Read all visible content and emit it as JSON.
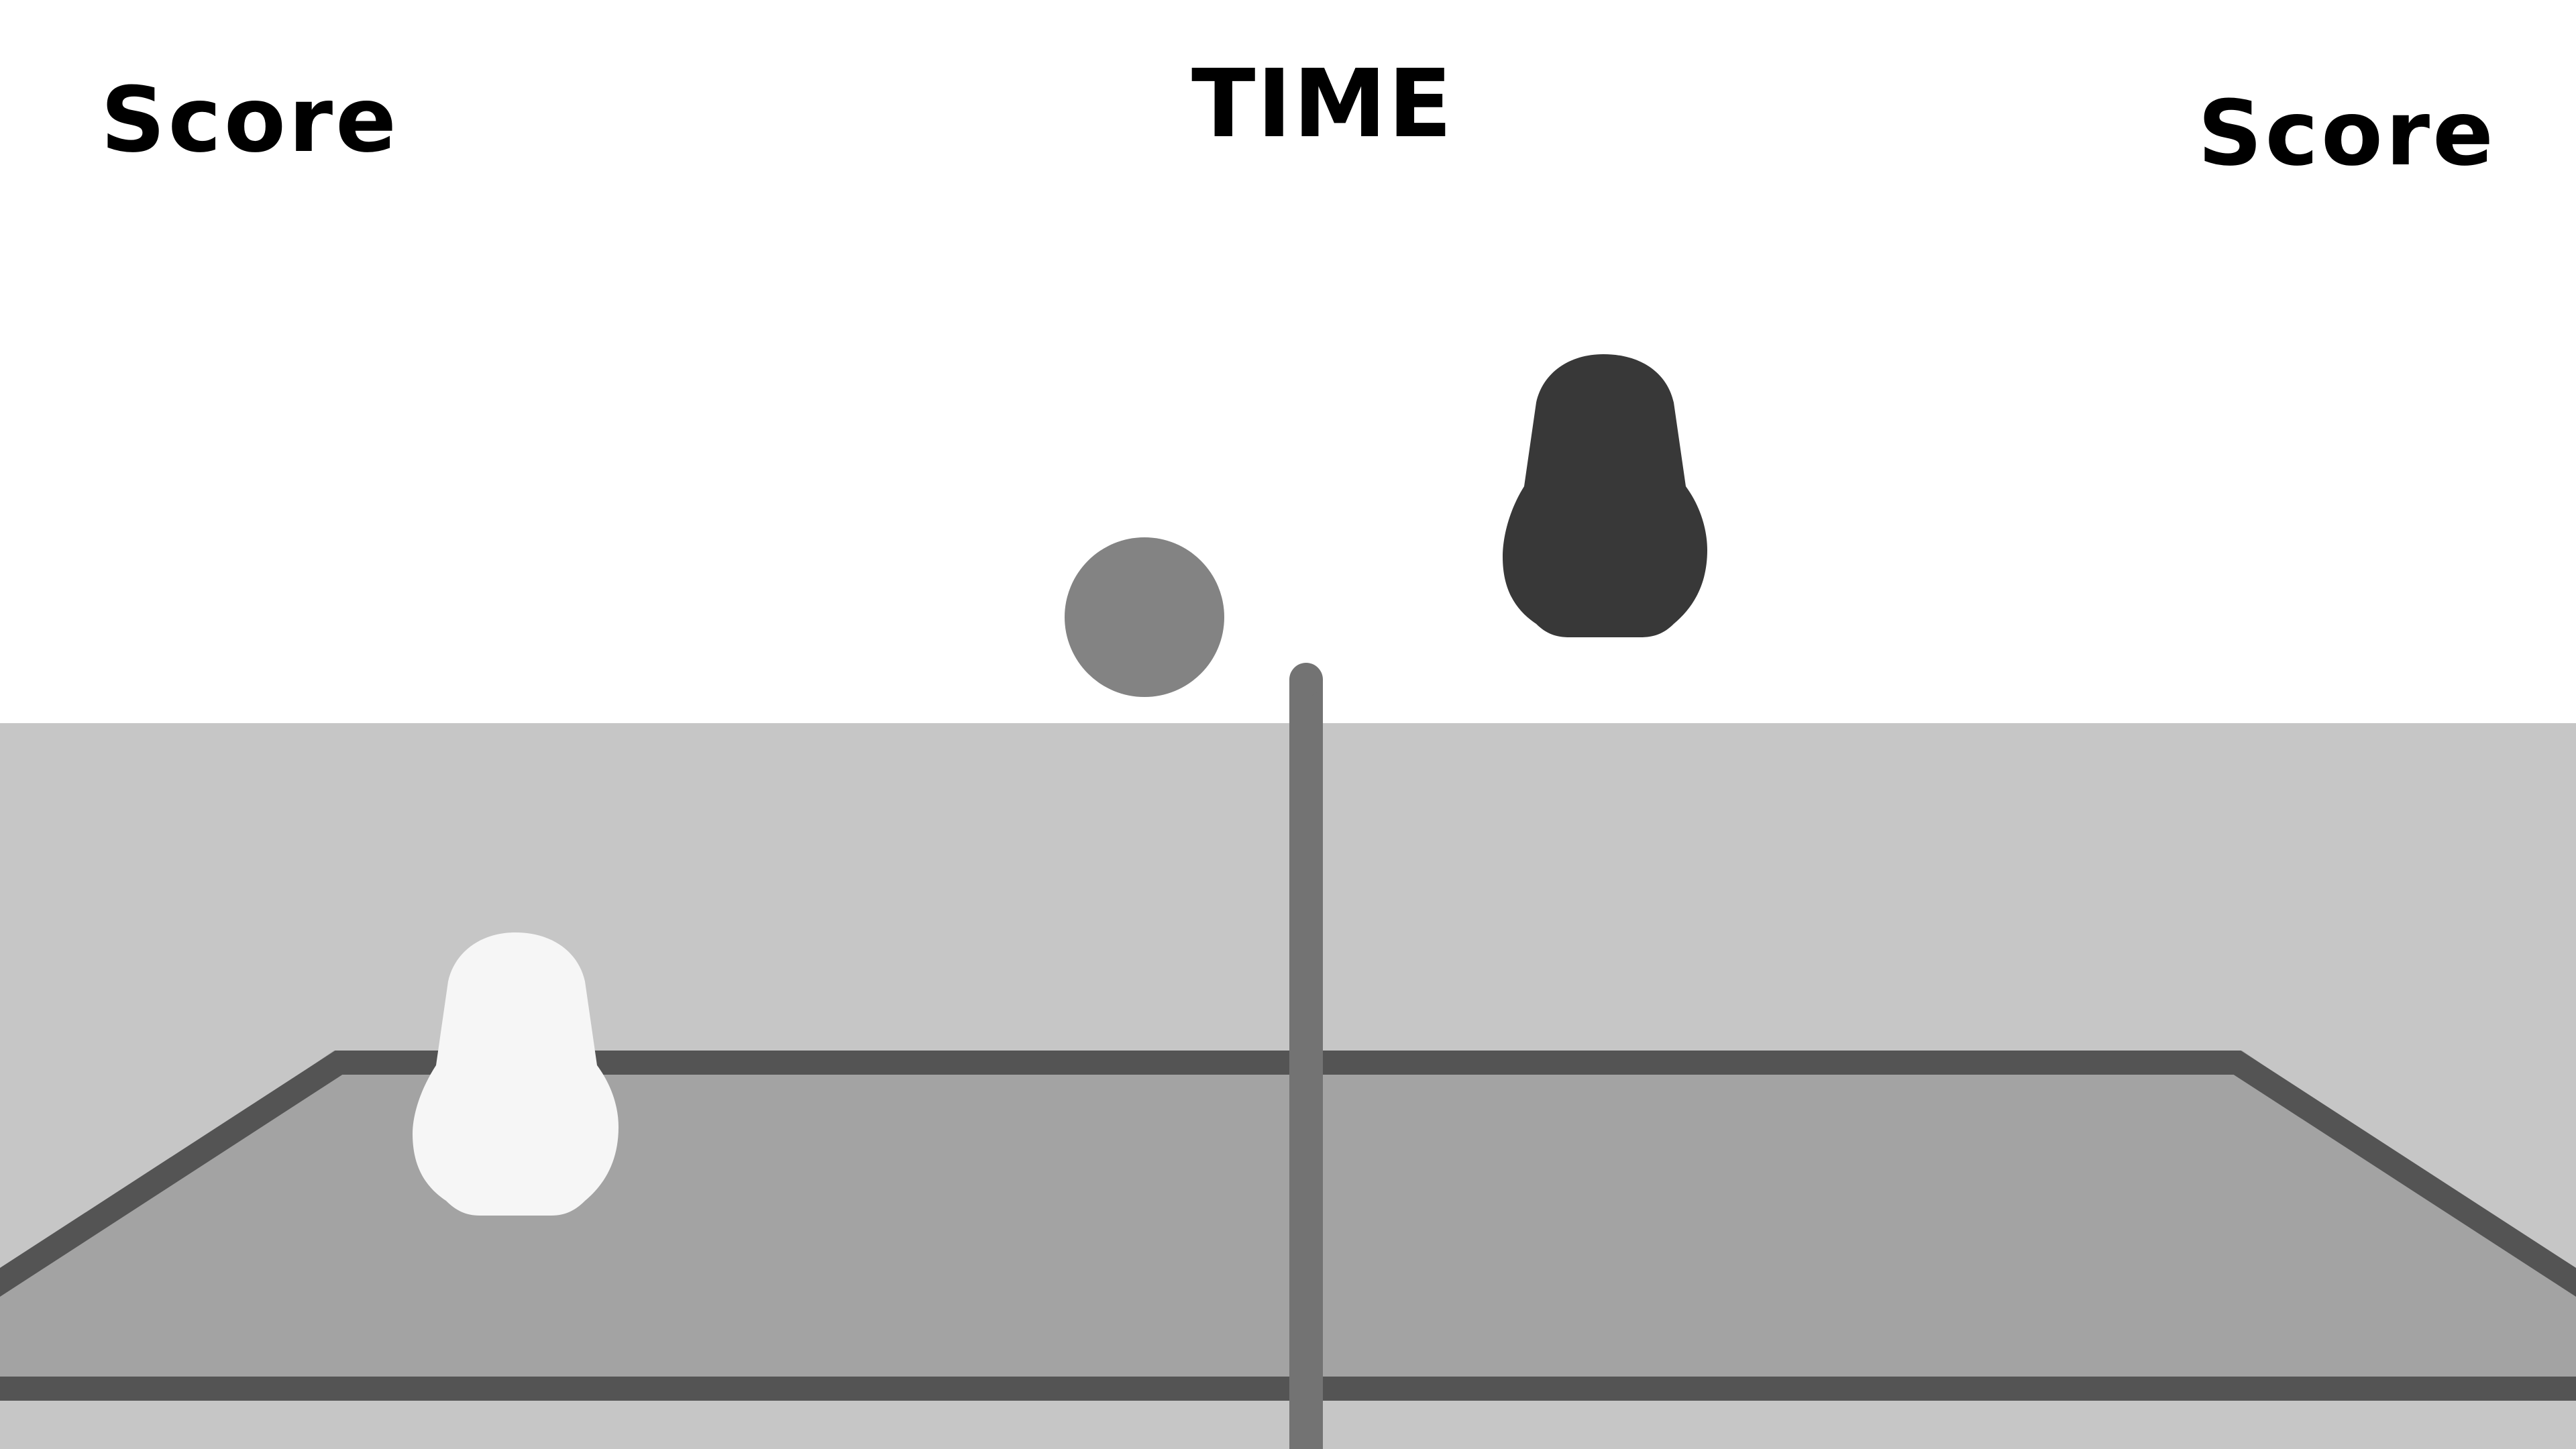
{
  "hud": {
    "left_score_label": "Score",
    "right_score_label": "Score",
    "time_label": "TIME"
  },
  "colors": {
    "sky": "#ffffff",
    "floor": "#c6c6c6",
    "court": "#a3a3a3",
    "court_border": "#545454",
    "net_post": "#737373",
    "ball": "#838383",
    "player_left": "#f6f6f6",
    "player_right": "#383838"
  },
  "scene": {
    "ball": "ball",
    "net": "net",
    "player_left": "white blob player",
    "player_right": "dark blob player"
  }
}
